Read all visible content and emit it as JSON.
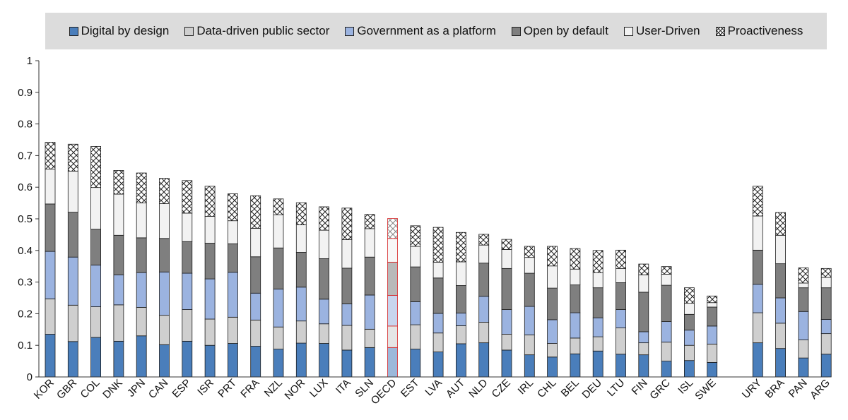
{
  "chart_data": {
    "type": "bar",
    "stacked": true,
    "title": "",
    "xlabel": "",
    "ylabel": "",
    "ylim": [
      0,
      1
    ],
    "yticks": [
      "0",
      "0.1",
      "0.2",
      "0.3",
      "0.4",
      "0.5",
      "0.6",
      "0.7",
      "0.8",
      "0.9",
      "1"
    ],
    "categories": [
      "KOR",
      "GBR",
      "COL",
      "DNK",
      "JPN",
      "CAN",
      "ESP",
      "ISR",
      "PRT",
      "FRA",
      "NZL",
      "NOR",
      "LUX",
      "ITA",
      "SLN",
      "OECD",
      "EST",
      "LVA",
      "AUT",
      "NLD",
      "CZE",
      "IRL",
      "CHL",
      "BEL",
      "DEU",
      "LTU",
      "FIN",
      "GRC",
      "ISL",
      "SWE",
      "",
      "URY",
      "BRA",
      "PAN",
      "ARG"
    ],
    "highlight": "OECD",
    "series": [
      {
        "name": "Digital by design",
        "color": "#4a7ebb",
        "pattern": "solid",
        "values": [
          0.135,
          0.112,
          0.125,
          0.113,
          0.13,
          0.102,
          0.113,
          0.1,
          0.106,
          0.097,
          0.088,
          0.107,
          0.106,
          0.085,
          0.093,
          0.093,
          0.088,
          0.079,
          0.105,
          0.108,
          0.085,
          0.07,
          0.063,
          0.073,
          0.082,
          0.072,
          0.07,
          0.05,
          0.052,
          0.046,
          null,
          0.108,
          0.09,
          0.06,
          0.072
        ]
      },
      {
        "name": "Data-driven public sector",
        "color": "#cfcfcf",
        "pattern": "solid",
        "values": [
          0.112,
          0.115,
          0.097,
          0.115,
          0.09,
          0.093,
          0.1,
          0.083,
          0.083,
          0.083,
          0.07,
          0.07,
          0.062,
          0.078,
          0.058,
          0.068,
          0.077,
          0.06,
          0.057,
          0.065,
          0.05,
          0.063,
          0.043,
          0.05,
          0.045,
          0.083,
          0.038,
          0.06,
          0.048,
          0.058,
          null,
          0.095,
          0.08,
          0.057,
          0.065
        ]
      },
      {
        "name": "Government as a platform",
        "color": "#9bb3e0",
        "pattern": "solid",
        "values": [
          0.15,
          0.152,
          0.132,
          0.095,
          0.11,
          0.137,
          0.115,
          0.127,
          0.142,
          0.085,
          0.12,
          0.107,
          0.078,
          0.068,
          0.108,
          0.097,
          0.073,
          0.062,
          0.04,
          0.082,
          0.078,
          0.09,
          0.075,
          0.08,
          0.06,
          0.058,
          0.035,
          0.065,
          0.048,
          0.057,
          null,
          0.09,
          0.08,
          0.09,
          0.045
        ]
      },
      {
        "name": "Open by default",
        "color": "#7f7f7f",
        "pattern": "solid",
        "values": [
          0.15,
          0.142,
          0.113,
          0.125,
          0.11,
          0.106,
          0.1,
          0.113,
          0.09,
          0.115,
          0.13,
          0.11,
          0.128,
          0.113,
          0.12,
          0.105,
          0.11,
          0.112,
          0.087,
          0.105,
          0.13,
          0.105,
          0.1,
          0.088,
          0.095,
          0.085,
          0.125,
          0.115,
          0.05,
          0.06,
          null,
          0.108,
          0.108,
          0.075,
          0.1
        ]
      },
      {
        "name": "User-Driven",
        "color": "#f2f2f2",
        "pattern": "solid",
        "values": [
          0.11,
          0.13,
          0.132,
          0.13,
          0.11,
          0.11,
          0.09,
          0.085,
          0.073,
          0.09,
          0.105,
          0.087,
          0.09,
          0.09,
          0.09,
          0.075,
          0.065,
          0.05,
          0.075,
          0.057,
          0.06,
          0.05,
          0.07,
          0.05,
          0.048,
          0.045,
          0.055,
          0.035,
          0.035,
          0.014,
          null,
          0.108,
          0.09,
          0.015,
          0.033
        ]
      },
      {
        "name": "Proactiveness",
        "color": "#ffffff",
        "pattern": "crosshatch",
        "values": [
          0.085,
          0.085,
          0.13,
          0.075,
          0.095,
          0.08,
          0.103,
          0.095,
          0.085,
          0.103,
          0.05,
          0.07,
          0.074,
          0.1,
          0.045,
          0.063,
          0.065,
          0.11,
          0.093,
          0.034,
          0.032,
          0.035,
          0.062,
          0.065,
          0.07,
          0.058,
          0.034,
          0.024,
          0.049,
          0.021,
          null,
          0.094,
          0.072,
          0.048,
          0.028
        ]
      }
    ]
  }
}
